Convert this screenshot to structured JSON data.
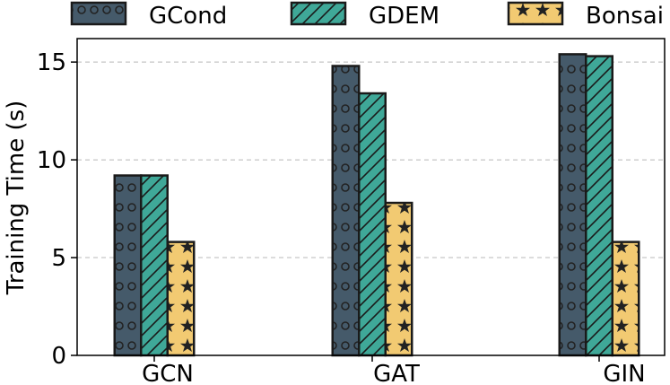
{
  "chart_data": {
    "type": "bar",
    "title": "",
    "xlabel": "",
    "ylabel": "Training Time (s)",
    "categories": [
      "GCN",
      "GAT",
      "GIN"
    ],
    "series": [
      {
        "name": "GCond",
        "values": [
          9.2,
          14.8,
          15.4
        ],
        "color": "#455a6a",
        "pattern": "circles"
      },
      {
        "name": "GDEM",
        "values": [
          9.2,
          13.4,
          15.3
        ],
        "color": "#3fa898",
        "pattern": "diagonal"
      },
      {
        "name": "Bonsai",
        "values": [
          5.8,
          7.8,
          5.8
        ],
        "color": "#f2ca72",
        "pattern": "stars"
      }
    ],
    "ylim": [
      0,
      16.2
    ],
    "yticks": [
      0,
      5,
      10,
      15
    ],
    "grid": "y-dashed",
    "legend": "top"
  }
}
